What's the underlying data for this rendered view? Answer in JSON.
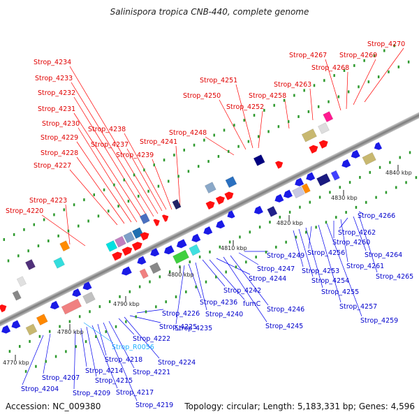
{
  "title": "Salinispora tropica CNB-440, complete genome",
  "footer": {
    "accession": "Accession: NC_009380",
    "topology": "Topology: circular; Length: 5,183,331 bp; Genes: 4,596"
  },
  "colors": {
    "forward": "#ff0000",
    "reverse": "#0000ee",
    "rna": "#22aaff"
  },
  "kbp_ticks": [
    "4770 kbp",
    "4780 kbp",
    "4790 kbp",
    "4800 kbp",
    "4810 kbp",
    "4820 kbp",
    "4830 kbp",
    "4840 kbp"
  ],
  "forward_labels": [
    "Strop_4220",
    "Strop_4223",
    "Strop_4227",
    "Strop_4228",
    "Strop_4229",
    "Strop_4230",
    "Strop_4231",
    "Strop_4232",
    "Strop_4233",
    "Strop_4234",
    "Strop_4237",
    "Strop_4238",
    "Strop_4239",
    "Strop_4241",
    "Strop_4248",
    "Strop_4250",
    "Strop_4251",
    "Strop_4252",
    "Strop_4258",
    "Strop_4263",
    "Strop_4267",
    "Strop_4268",
    "Strop_4269",
    "Strop_4270"
  ],
  "reverse_labels": [
    "Strop_4204",
    "Strop_4207",
    "Strop_4209",
    "Strop_4214",
    "Strop_4215",
    "Strop_4217",
    "Strop_4218",
    "Strop_4219",
    "Strop_4221",
    "Strop_4222",
    "Strop_4224",
    "Strop_4225",
    "Strop_4226",
    "Strop_4235",
    "Strop_4236",
    "Strop_4240",
    "Strop_4242",
    "fumC",
    "Strop_4244",
    "Strop_4245",
    "Strop_4246",
    "Strop_4247",
    "Strop_4249",
    "Strop_4253",
    "Strop_4254",
    "Strop_4255",
    "Strop_4256",
    "Strop_4257",
    "Strop_4259",
    "Strop_4260",
    "Strop_4261",
    "Strop_4262",
    "Strop_4264",
    "Strop_4265",
    "Strop_4266"
  ],
  "rna_labels": [
    "Strop_R0056"
  ]
}
